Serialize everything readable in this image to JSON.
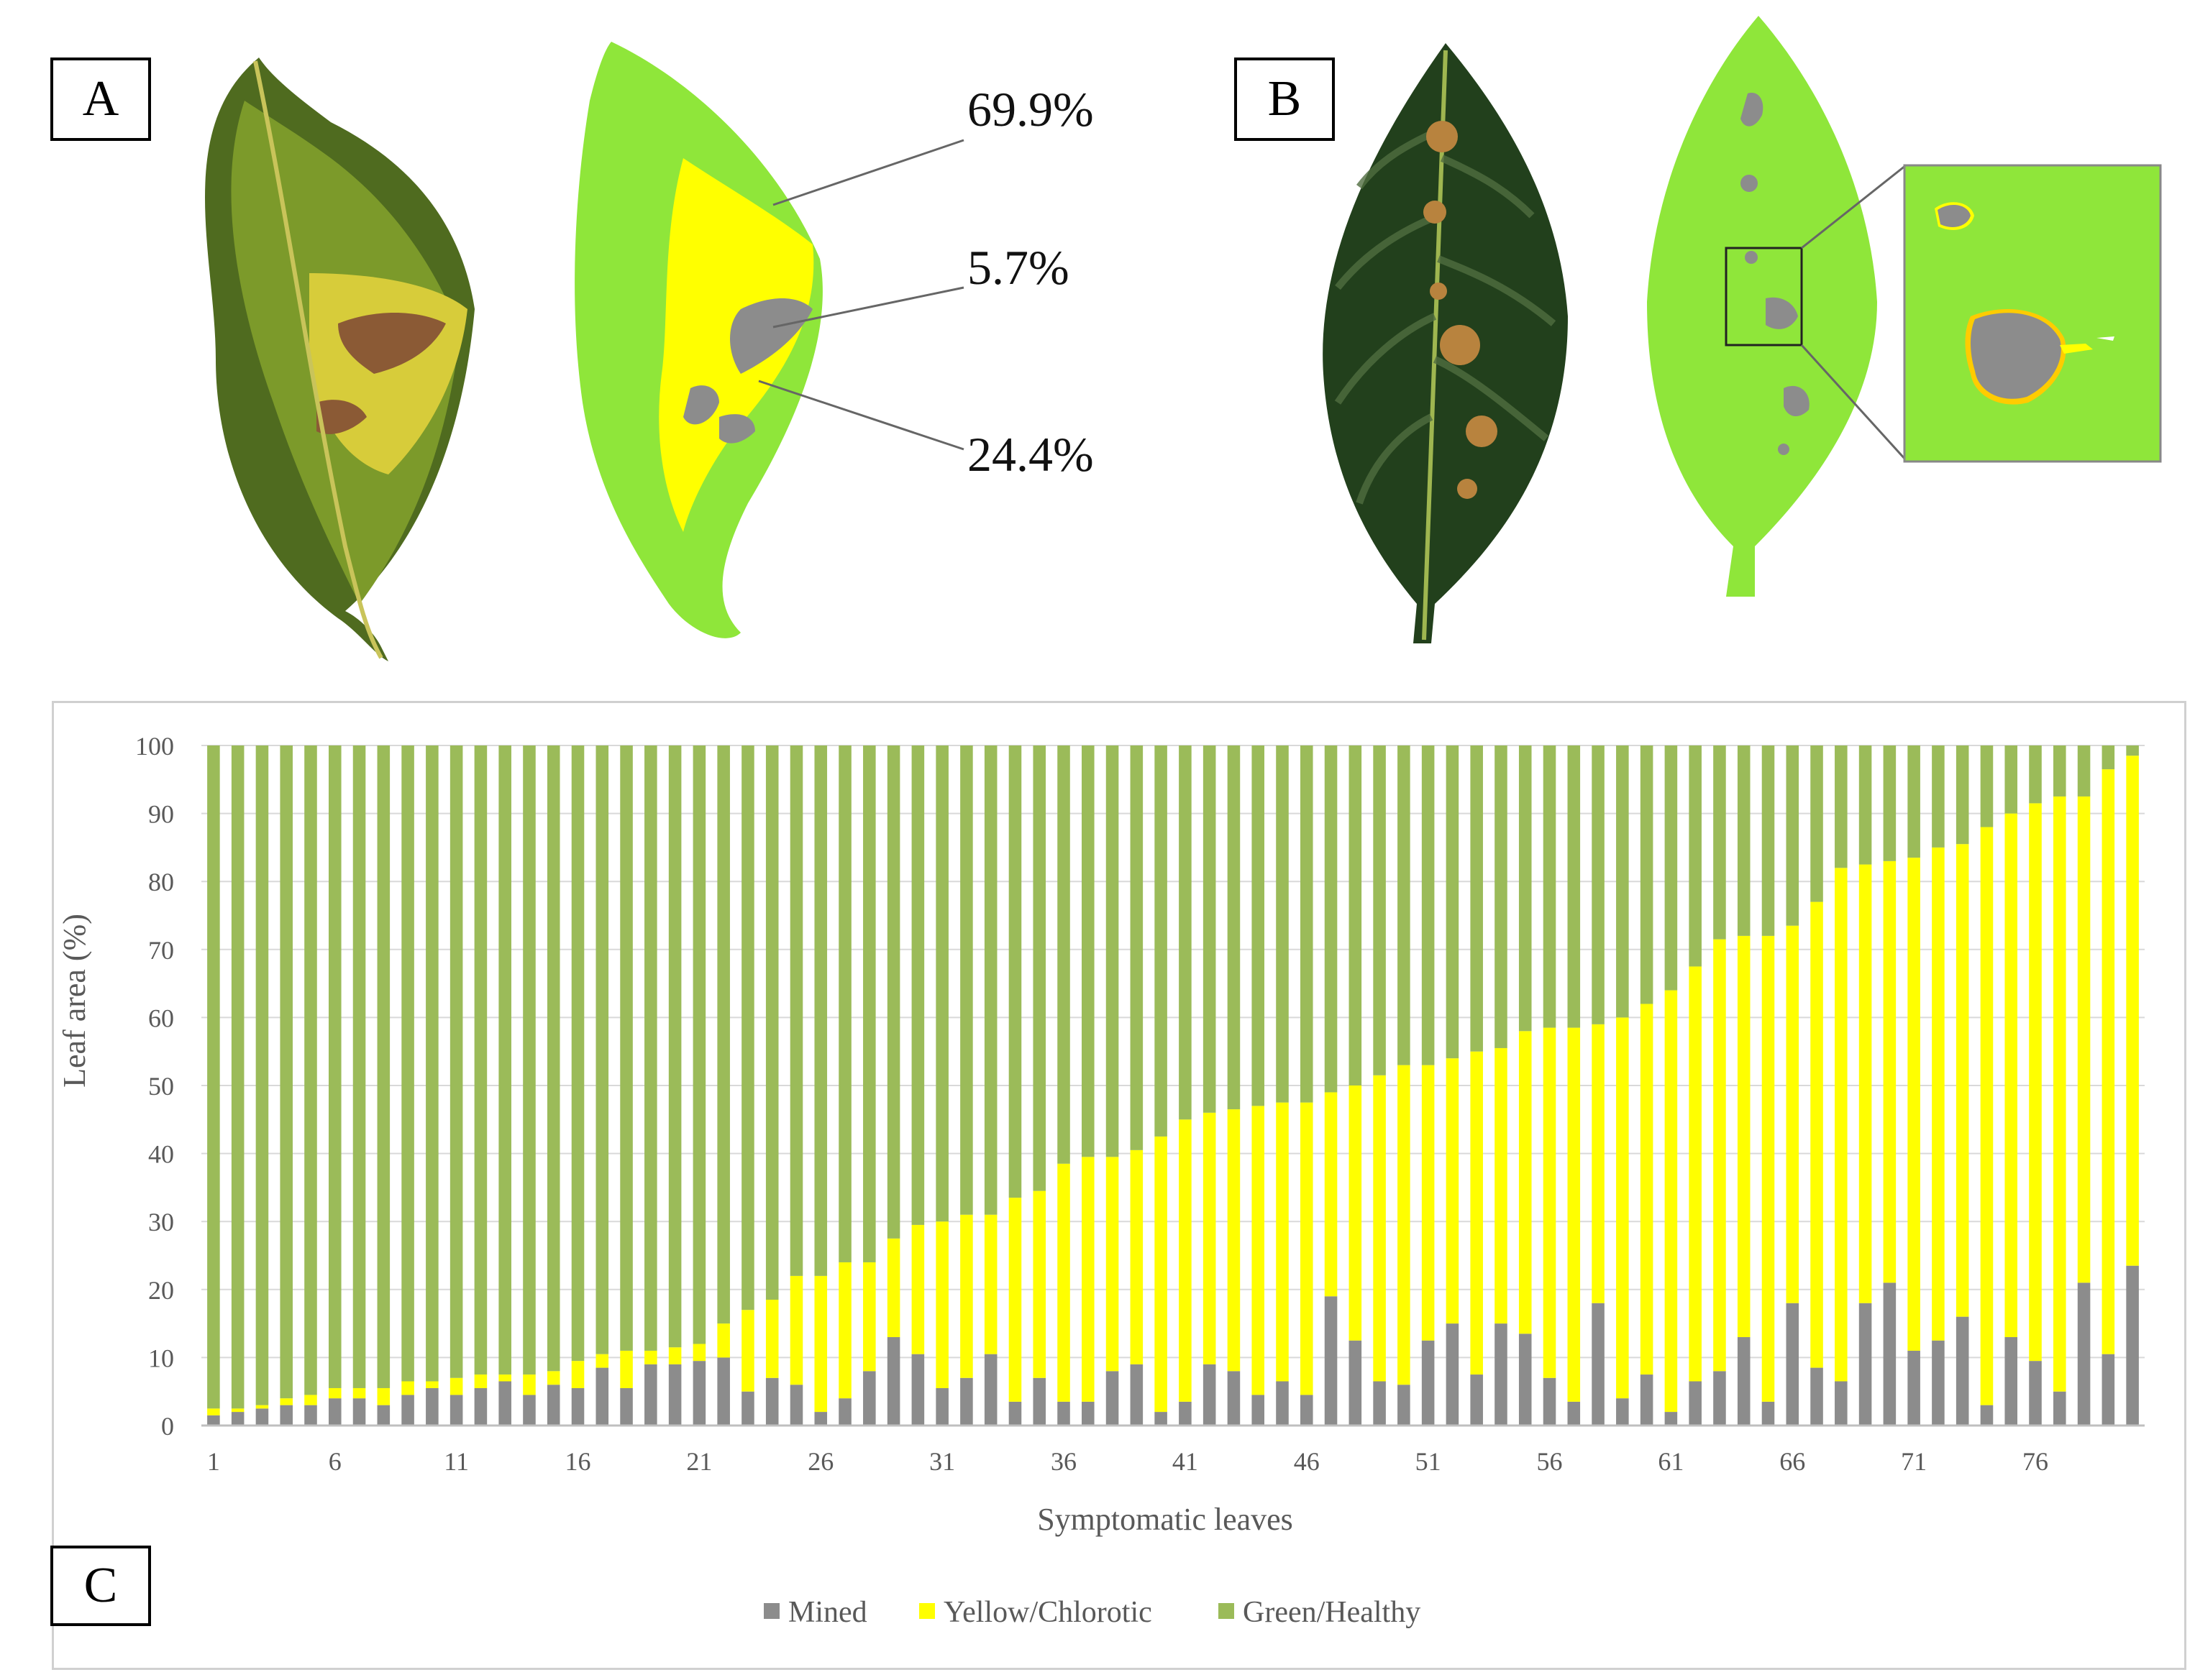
{
  "panels": {
    "a_label": "A",
    "b_label": "B",
    "c_label": "C",
    "a_percent_green": "69.9%",
    "a_percent_mined": "5.7%",
    "a_percent_yellow": "24.4%"
  },
  "colors": {
    "mined": "#8c8c8c",
    "yellow": "#ffff00",
    "green": "#9bbb59",
    "segment_green": "#8fe63a"
  },
  "chart_data": {
    "type": "bar",
    "stacked": true,
    "xlabel": "Symptomatic leaves",
    "ylabel": "Leaf area (%)",
    "ylim": [
      0,
      100
    ],
    "yticks": [
      0,
      10,
      20,
      30,
      40,
      50,
      60,
      70,
      80,
      90,
      100
    ],
    "xtick_labels": [
      "1",
      "6",
      "11",
      "16",
      "21",
      "26",
      "31",
      "36",
      "41",
      "46",
      "51",
      "56",
      "61",
      "66",
      "71",
      "76"
    ],
    "legend_position": "bottom-center",
    "categories": [
      1,
      2,
      3,
      4,
      5,
      6,
      7,
      8,
      9,
      10,
      11,
      12,
      13,
      14,
      15,
      16,
      17,
      18,
      19,
      20,
      21,
      22,
      23,
      24,
      25,
      26,
      27,
      28,
      29,
      30,
      31,
      32,
      33,
      34,
      35,
      36,
      37,
      38,
      39,
      40,
      41,
      42,
      43,
      44,
      45,
      46,
      47,
      48,
      49,
      50,
      51,
      52,
      53,
      54,
      55,
      56,
      57,
      58,
      59,
      60,
      61,
      62,
      63,
      64,
      65,
      66,
      67,
      68,
      69,
      70,
      71,
      72,
      73,
      74,
      75,
      76,
      77,
      78,
      79,
      80
    ],
    "series": [
      {
        "name": "Mined",
        "values": [
          1.5,
          2,
          2.5,
          3,
          3,
          4,
          4,
          3,
          4.5,
          5.5,
          4.5,
          5.5,
          6.5,
          4.5,
          6,
          5.5,
          8.5,
          5.5,
          9,
          9,
          9.5,
          10,
          5,
          7,
          6,
          2,
          4,
          8,
          13,
          10.5,
          5.5,
          7,
          10.5,
          3.5,
          7,
          3.5,
          3.5,
          8,
          9,
          2,
          3.5,
          9,
          8,
          4.5,
          6.5,
          4.5,
          19,
          12.5,
          6.5,
          6,
          12.5,
          15,
          7.5,
          15,
          13.5,
          7,
          3.5,
          18,
          4,
          7.5,
          2,
          6.5,
          8,
          13,
          3.5,
          18,
          8.5,
          6.5,
          18,
          21,
          11,
          12.5,
          16,
          3,
          13,
          9.5,
          5,
          21,
          10.5,
          23.5
        ]
      },
      {
        "name": "Yellow/Chlorotic",
        "values": [
          1,
          0.5,
          0.5,
          1,
          1.5,
          1.5,
          1.5,
          2.5,
          2,
          1,
          2.5,
          2,
          1,
          3,
          2,
          4,
          2,
          5.5,
          2,
          2.5,
          2.5,
          5,
          12,
          11.5,
          16,
          20,
          20,
          16,
          14.5,
          19,
          24.5,
          24,
          20.5,
          30,
          27.5,
          35,
          36,
          31.5,
          31.5,
          40.5,
          41.5,
          37,
          38.5,
          42.5,
          41,
          43,
          30,
          37.5,
          45,
          47,
          40.5,
          39,
          47.5,
          40.5,
          44.5,
          51.5,
          55,
          41,
          56,
          54.5,
          62,
          61,
          63.5,
          59,
          68.5,
          55.5,
          68.5,
          75.5,
          64.5,
          62,
          72.5,
          72.5,
          69.5,
          85,
          77,
          82,
          87.5,
          71.5,
          86,
          75
        ]
      },
      {
        "name": "Green/Healthy",
        "values": [
          97.5,
          97.5,
          97,
          96,
          95.5,
          94.5,
          94.5,
          94.5,
          93.5,
          93.5,
          93,
          92.5,
          92.5,
          92.5,
          92,
          90.5,
          89.5,
          89,
          89,
          88.5,
          88,
          85,
          83,
          81.5,
          78,
          78,
          76,
          76,
          72.5,
          70.5,
          70,
          69,
          69,
          66.5,
          65.5,
          61.5,
          60.5,
          60.5,
          59.5,
          57.5,
          55,
          54,
          53.5,
          53,
          52.5,
          52.5,
          51,
          50,
          48.5,
          47,
          47,
          46,
          45,
          44.5,
          42,
          41.5,
          41.5,
          41,
          40,
          38,
          36,
          32.5,
          28.5,
          28,
          28,
          26.5,
          23,
          18,
          17.5,
          17,
          16.5,
          15,
          14.5,
          12,
          10,
          8.5,
          7.5,
          7.5,
          3.5,
          1.5
        ]
      }
    ]
  }
}
